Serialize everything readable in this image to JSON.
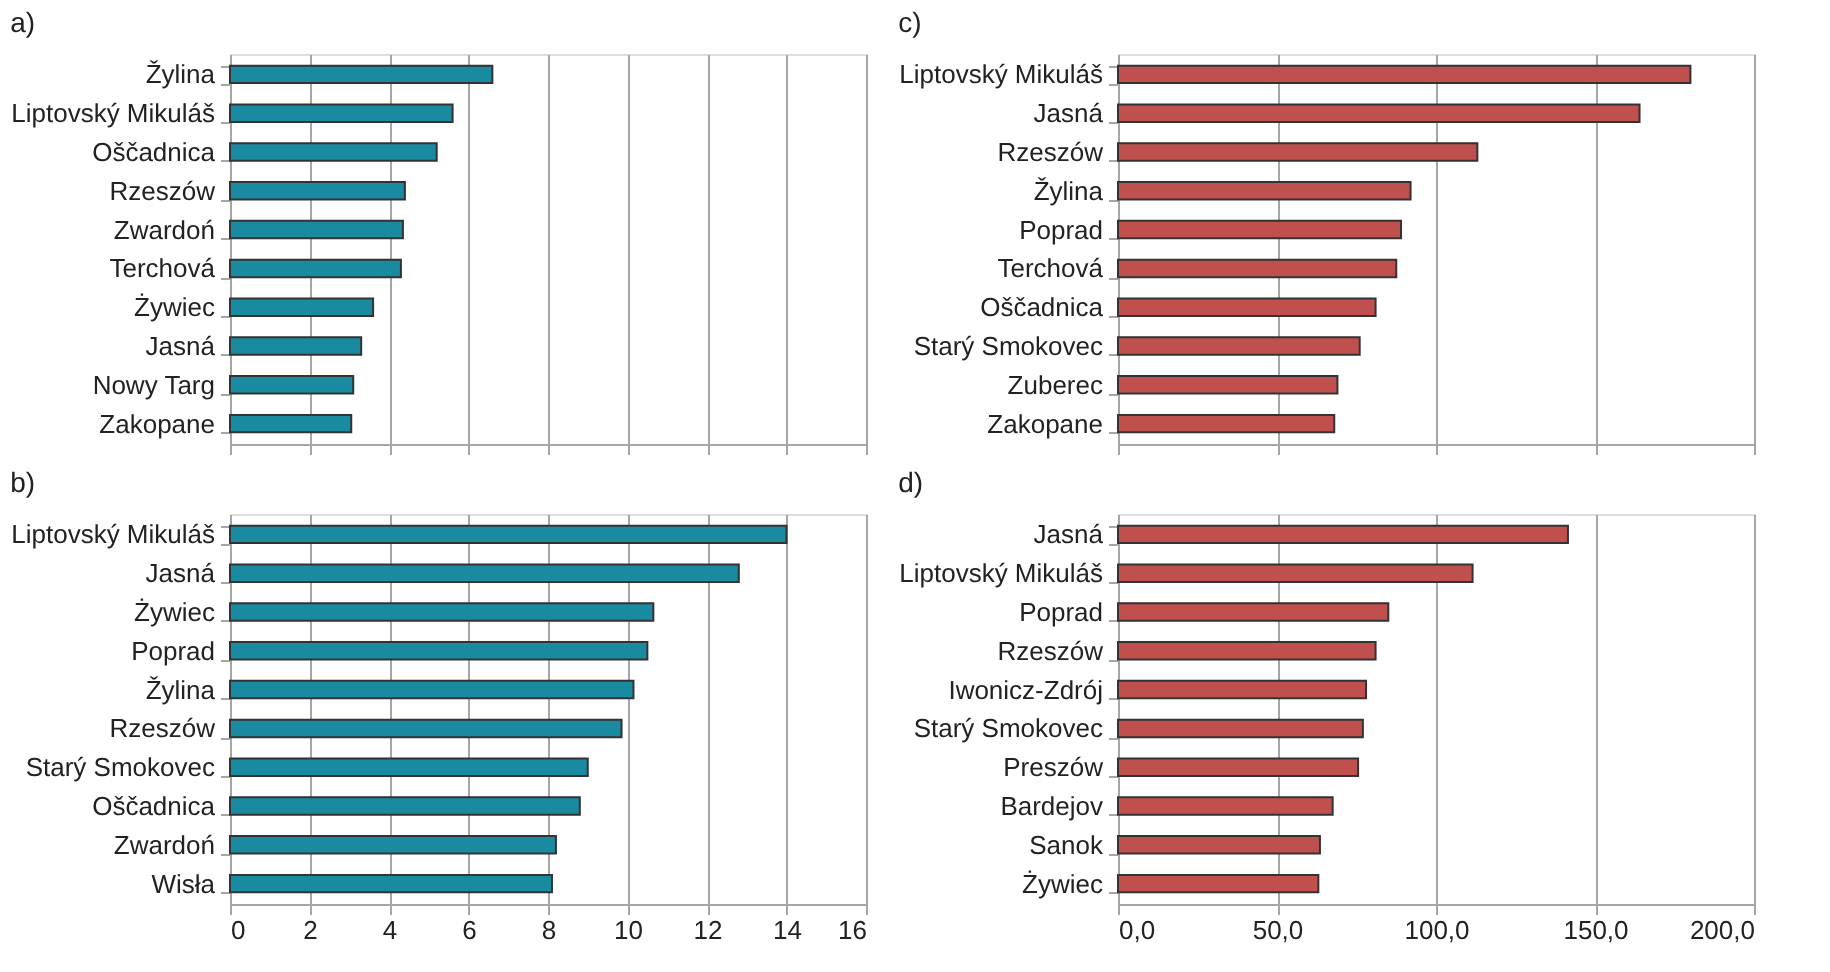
{
  "chart_data": [
    {
      "type": "bar",
      "orientation": "horizontal",
      "title": "a)",
      "categories": [
        "Žylina",
        "Liptovský Mikuláš",
        "Oščadnica",
        "Rzeszów",
        "Zwardoń",
        "Terchová",
        "Żywiec",
        "Jasná",
        "Nowy Targ",
        "Zakopane"
      ],
      "values": [
        6.6,
        5.6,
        5.2,
        4.4,
        4.35,
        4.3,
        3.6,
        3.3,
        3.1,
        3.05
      ],
      "color": "#1a8aa0",
      "xlim": [
        0,
        16
      ],
      "xticks": [
        0,
        2,
        4,
        6,
        8,
        10,
        12,
        14,
        16
      ],
      "grid": "x",
      "tick_labels": "y"
    },
    {
      "type": "bar",
      "orientation": "horizontal",
      "title": "b)",
      "categories": [
        "Liptovský Mikuláš",
        "Jasná",
        "Żywiec",
        "Poprad",
        "Žylina",
        "Rzeszów",
        "Starý Smokovec",
        "Oščadnica",
        "Zwardoń",
        "Wisła"
      ],
      "values": [
        14.0,
        12.8,
        10.65,
        10.5,
        10.15,
        9.85,
        9.0,
        8.8,
        8.2,
        8.1
      ],
      "color": "#1a8aa0",
      "xlim": [
        0,
        16
      ],
      "xticks": [
        0,
        2,
        4,
        6,
        8,
        10,
        12,
        14,
        16
      ],
      "grid": "x"
    },
    {
      "type": "bar",
      "orientation": "horizontal",
      "title": "c)",
      "categories": [
        "Liptovský Mikuláš",
        "Jasná",
        "Rzeszów",
        "Žylina",
        "Poprad",
        "Terchová",
        "Oščadnica",
        "Starý Smokovec",
        "Zuberec",
        "Zakopane"
      ],
      "values": [
        180,
        164,
        113,
        92,
        89,
        87.5,
        81,
        76,
        69,
        68
      ],
      "color": "#c0504d",
      "xlim": [
        0,
        200
      ],
      "xticks": [
        0,
        50,
        100,
        150,
        200
      ],
      "grid": "x",
      "tick_labels": "y"
    },
    {
      "type": "bar",
      "orientation": "horizontal",
      "title": "d)",
      "categories": [
        "Jasná",
        "Liptovský Mikuláš",
        "Poprad",
        "Rzeszów",
        "Iwonicz-Zdrój",
        "Starý Smokovec",
        "Preszów",
        "Bardejov",
        "Sanok",
        "Żywiec"
      ],
      "values": [
        141.5,
        111.5,
        85,
        81,
        78,
        77,
        75.5,
        67.5,
        63.5,
        63
      ],
      "color": "#c0504d",
      "xlim": [
        0,
        200
      ],
      "xticks": [
        {
          "value": 0,
          "label": "0,0"
        },
        {
          "value": 50,
          "label": "50,0"
        },
        {
          "value": 100,
          "label": "100,0"
        },
        {
          "value": 150,
          "label": "150,0"
        },
        {
          "value": 200,
          "label": "200,0"
        }
      ],
      "grid": "x"
    }
  ]
}
